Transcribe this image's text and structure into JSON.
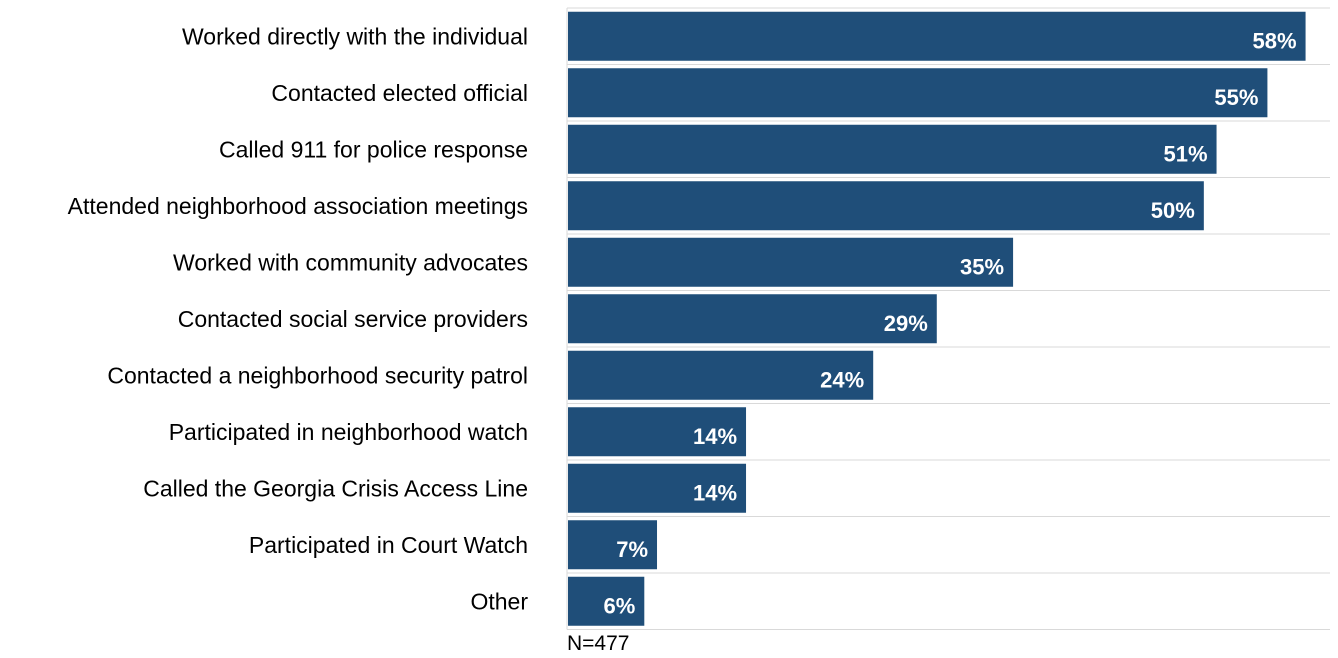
{
  "chart_data": {
    "type": "bar",
    "orientation": "horizontal",
    "categories": [
      "Worked directly with the individual",
      "Contacted elected official",
      "Called 911 for police response",
      "Attended neighborhood association meetings",
      "Worked with community advocates",
      "Contacted social service providers",
      "Contacted a neighborhood security patrol",
      "Participated in neighborhood watch",
      "Called the Georgia Crisis Access Line",
      "Participated in Court Watch",
      "Other"
    ],
    "values": [
      58,
      55,
      51,
      50,
      35,
      29,
      24,
      14,
      14,
      7,
      6
    ],
    "value_labels": [
      "58%",
      "55%",
      "51%",
      "50%",
      "35%",
      "29%",
      "24%",
      "14%",
      "14%",
      "7%",
      "6%"
    ],
    "xlim": [
      0,
      60
    ],
    "grid": true,
    "bar_color": "#1f4e79",
    "note": "N=477"
  }
}
